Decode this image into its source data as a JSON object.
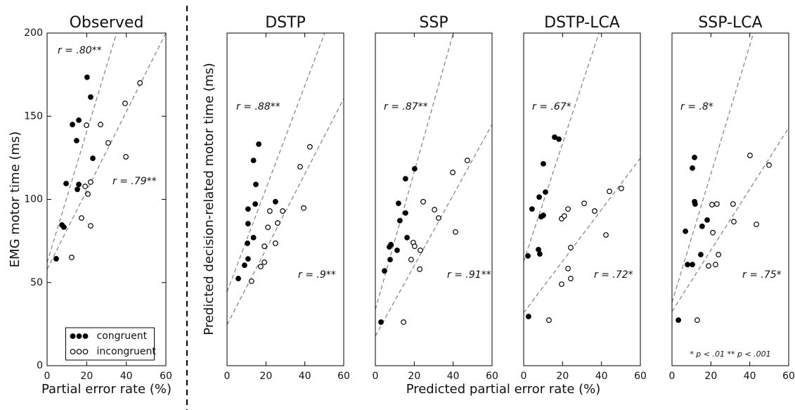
{
  "chart_data": [
    {
      "type": "scatter",
      "title": "Observed",
      "x_label": "Partial error rate (%)",
      "y_label": "EMG motor time (ms)",
      "xlim": [
        0,
        60
      ],
      "ylim": [
        0,
        200
      ],
      "xticks": [
        0,
        20,
        40,
        60
      ],
      "yticks": [
        0,
        50,
        100,
        150,
        200
      ],
      "legend": "lower center",
      "series": [
        {
          "name": "congruent",
          "color": "#000000",
          "marker": "filled",
          "x": [
            20.2,
            22.0,
            12.8,
            16.0,
            14.9,
            23.1,
            9.6,
            16.0,
            15.3,
            7.5,
            8.5,
            4.6
          ],
          "values": [
            173.4,
            161.5,
            145,
            147.6,
            135.3,
            124.7,
            109.5,
            109,
            106,
            84.6,
            83.3,
            64.3
          ]
        },
        {
          "name": "incongruent",
          "color": "#000000",
          "marker": "open",
          "x": [
            46.9,
            39.4,
            27.0,
            19.9,
            30.9,
            22.0,
            19.2,
            20.6,
            39.8,
            17.4,
            22.0,
            12.4
          ],
          "values": [
            170,
            157.7,
            145,
            144.6,
            134,
            110.4,
            107.8,
            103.2,
            125.6,
            88.8,
            84.1,
            65.1
          ]
        }
      ],
      "fits": [
        {
          "color": "#888888",
          "x": [
            0,
            35.1
          ],
          "y": [
            62,
            200
          ]
        },
        {
          "color": "#888888",
          "x": [
            0,
            60
          ],
          "y": [
            58,
            200
          ]
        }
      ],
      "annotations": [
        "r = .80**",
        "r = .79**"
      ]
    },
    {
      "type": "scatter",
      "title": "DSTP",
      "xlim": [
        0,
        60
      ],
      "ylim": [
        0,
        100
      ],
      "xticks": [
        0,
        20,
        40,
        60
      ],
      "series": [
        {
          "color": "#000000",
          "marker": "filled",
          "x": [
            16.3,
            13.6,
            14.8,
            10.8,
            14.5,
            10.8,
            13.6,
            10.5,
            10.8,
            9.0,
            5.8,
            24.9
          ],
          "values": [
            66.6,
            61.7,
            54.5,
            47.1,
            48.6,
            42.7,
            38.5,
            36.8,
            32.1,
            30.2,
            26.2,
            49.3
          ]
        },
        {
          "color": "#000000",
          "marker": "open",
          "x": [
            42.6,
            37.6,
            28.6,
            22.0,
            26.0,
            21.0,
            39.4,
            24.9,
            19.2,
            19.2,
            17.3,
            12.6
          ],
          "values": [
            65.8,
            59.8,
            46.5,
            46.5,
            42.9,
            41.6,
            47.4,
            36.8,
            35.9,
            31.1,
            29.8,
            25.4
          ]
        }
      ],
      "fits": [
        {
          "color": "#888888",
          "x": [
            0,
            50.2
          ],
          "y": [
            22.2,
            100
          ]
        },
        {
          "color": "#888888",
          "x": [
            0,
            60
          ],
          "y": [
            12.3,
            80.3
          ]
        }
      ],
      "annotations": [
        "r = .88**",
        "r = .9**"
      ]
    },
    {
      "type": "scatter",
      "title": "SSP",
      "xlim": [
        0,
        60
      ],
      "ylim": [
        0,
        100
      ],
      "xticks": [
        0,
        20,
        40,
        60
      ],
      "series": [
        {
          "color": "#000000",
          "marker": "filled",
          "x": [
            20.2,
            15.5,
            11.9,
            15.5,
            12.6,
            16.3,
            8.0,
            7.2,
            11.2,
            7.6,
            4.7,
            2.9
          ],
          "values": [
            59.2,
            56.2,
            48.8,
            45.9,
            43.6,
            38.5,
            36.4,
            35.7,
            34.7,
            31.9,
            28.5,
            13.1
          ]
        },
        {
          "color": "#000000",
          "marker": "open",
          "x": [
            47.3,
            39.8,
            24.6,
            30.4,
            32.5,
            41.2,
            19.5,
            20.2,
            23.1,
            18.4,
            22.8,
            14.5
          ],
          "values": [
            61.7,
            58.1,
            49.3,
            46.9,
            44.4,
            40.2,
            37.0,
            35.9,
            34.7,
            31.9,
            29.0,
            13.1
          ]
        }
      ],
      "fits": [
        {
          "color": "#888888",
          "x": [
            0,
            40.1
          ],
          "y": [
            16.9,
            100
          ]
        },
        {
          "color": "#888888",
          "x": [
            0,
            60
          ],
          "y": [
            8.9,
            72.5
          ]
        }
      ],
      "annotations": [
        "r = .87**",
        "r = .91**"
      ]
    },
    {
      "type": "scatter",
      "title": "DSTP-LCA",
      "xlim": [
        0,
        60
      ],
      "ylim": [
        0,
        100
      ],
      "xticks": [
        0,
        20,
        40,
        60
      ],
      "series": [
        {
          "color": "#000000",
          "marker": "filled",
          "x": [
            15.9,
            18.1,
            10.1,
            11.2,
            8.0,
            10.1,
            9.0,
            4.3,
            7.6,
            8.3,
            2.2,
            2.5
          ],
          "values": [
            68.7,
            68.1,
            60.7,
            52.2,
            50.7,
            45.2,
            44.8,
            47.1,
            34.9,
            33.6,
            33.0,
            14.8
          ]
        },
        {
          "color": "#000000",
          "marker": "open",
          "x": [
            50.2,
            44.1,
            31.1,
            22.8,
            36.5,
            19.5,
            20.9,
            42.3,
            24.2,
            22.8,
            24.2,
            19.5,
            13.0
          ],
          "values": [
            53.3,
            52.4,
            48.8,
            47.1,
            46.5,
            44.2,
            45.0,
            39.3,
            35.5,
            29.2,
            26.2,
            24.5,
            13.7
          ]
        }
      ],
      "fits": [
        {
          "color": "#888888",
          "x": [
            0,
            38.7
          ],
          "y": [
            31.3,
            100
          ]
        },
        {
          "color": "#888888",
          "x": [
            0,
            60
          ],
          "y": [
            15.9,
            62.4
          ]
        }
      ],
      "annotations": [
        "r = .67*",
        "r = .72*"
      ]
    },
    {
      "type": "scatter",
      "title": "SSP-LCA",
      "xlim": [
        0,
        60
      ],
      "ylim": [
        0,
        100
      ],
      "xticks": [
        0,
        20,
        40,
        60
      ],
      "series": [
        {
          "color": "#000000",
          "marker": "filled",
          "x": [
            11.6,
            10.5,
            11.6,
            11.9,
            18.1,
            15.5,
            6.9,
            14.8,
            8.0,
            10.5,
            3.3
          ],
          "values": [
            62.6,
            59.4,
            49.3,
            48.6,
            43.8,
            41.9,
            40.4,
            33.4,
            30.4,
            30.4,
            13.7
          ]
        },
        {
          "color": "#000000",
          "marker": "open",
          "x": [
            40.1,
            49.9,
            31.4,
            20.6,
            23.1,
            43.4,
            31.8,
            21.0,
            23.9,
            22.4,
            18.8,
            13.0
          ],
          "values": [
            63.2,
            60.3,
            48.6,
            48.4,
            48.6,
            42.5,
            43.3,
            40.0,
            33.4,
            30.4,
            30.0,
            13.7
          ]
        }
      ],
      "fits": [
        {
          "color": "#888888",
          "x": [
            0,
            41.9
          ],
          "y": [
            19.0,
            100
          ]
        },
        {
          "color": "#888888",
          "x": [
            0,
            60
          ],
          "y": [
            16.3,
            71.5
          ]
        }
      ],
      "annotations": [
        "r = .8*",
        "r = .75*"
      ],
      "footnote": "* p < .01     ** p < .001"
    }
  ],
  "model_x_label": "Predicted partial error rate (%)",
  "model_y_label": "Predicted decision-related motor time (ms)"
}
